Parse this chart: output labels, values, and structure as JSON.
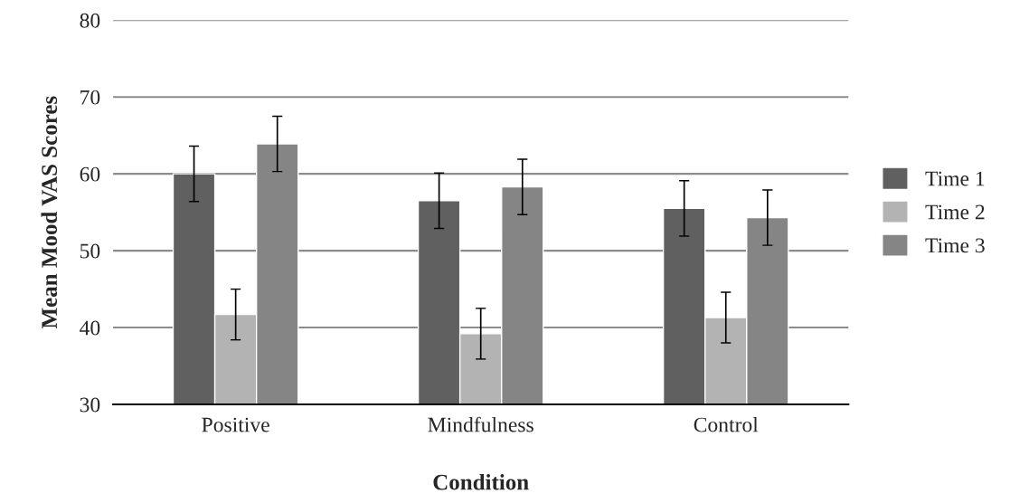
{
  "chart_data": {
    "type": "bar",
    "xlabel": "Condition",
    "ylabel": "Mean Mood VAS Scores",
    "categories": [
      "Positive",
      "Mindfulness",
      "Control"
    ],
    "series": [
      {
        "name": "Time 1",
        "color": "#606060",
        "values": [
          60.0,
          56.5,
          55.5
        ],
        "errors": [
          3.6,
          3.6,
          3.6
        ]
      },
      {
        "name": "Time 2",
        "color": "#b3b3b3",
        "values": [
          41.7,
          39.2,
          41.3
        ],
        "errors": [
          3.3,
          3.3,
          3.3
        ]
      },
      {
        "name": "Time 3",
        "color": "#858585",
        "values": [
          63.9,
          58.3,
          54.3
        ],
        "errors": [
          3.6,
          3.6,
          3.6
        ]
      }
    ],
    "ylim": [
      30,
      80
    ],
    "yticks": [
      30,
      40,
      50,
      60,
      70,
      80
    ],
    "grid": "y",
    "legend": "right"
  }
}
